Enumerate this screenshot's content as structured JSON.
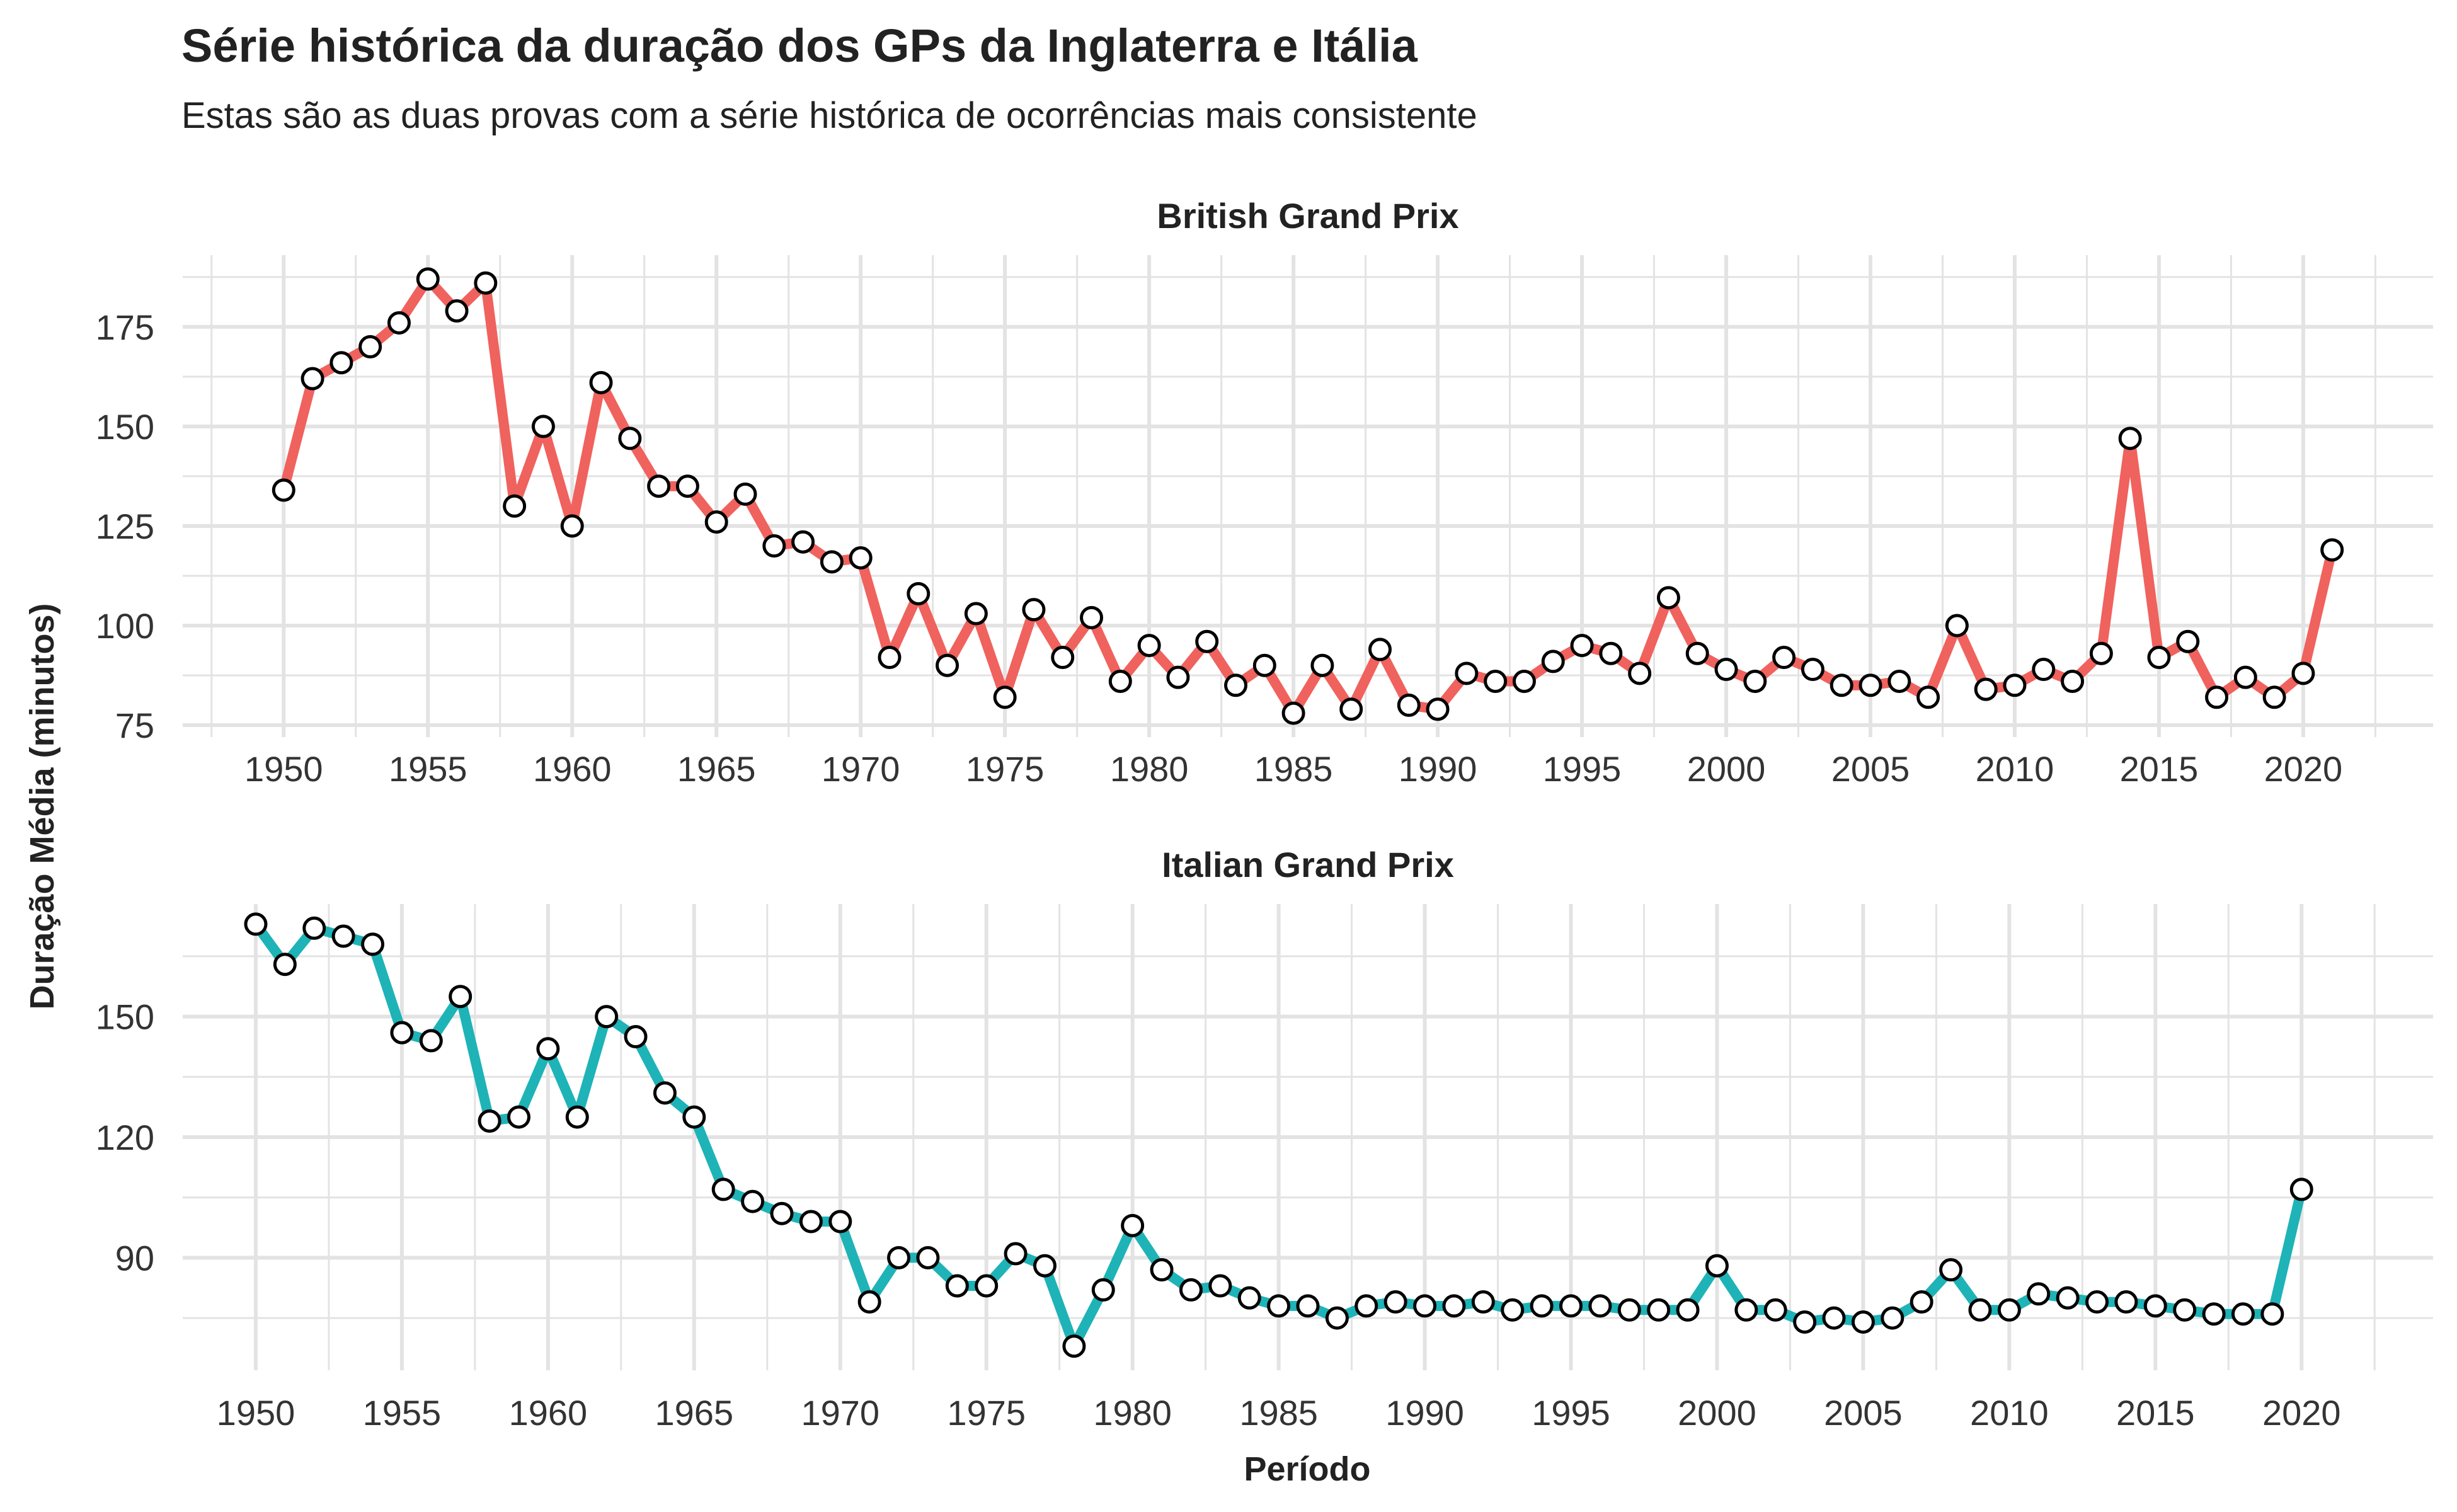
{
  "title": "Série histórica da duração dos GPs da Inglaterra e Itália",
  "subtitle": "Estas são as duas provas com a série histórica de ocorrências mais consistente",
  "ylabel": "Duração Média (minutos)",
  "xlabel": "Período",
  "colors": {
    "british": "#F0625D",
    "italian": "#1EB3B7",
    "grid": "#E3E3E3",
    "point_fill": "#FFFFFF",
    "point_stroke": "#000000"
  },
  "chart_data": [
    {
      "type": "line",
      "title": "British Grand Prix",
      "xlabel": "Período",
      "ylabel": "Duração Média (minutos)",
      "ylim": [
        72,
        193
      ],
      "xlim": [
        1946.5,
        2024.5
      ],
      "yticks": [
        75,
        100,
        125,
        150,
        175
      ],
      "xticks": [
        1950,
        1955,
        1960,
        1965,
        1970,
        1975,
        1980,
        1985,
        1990,
        1995,
        2000,
        2005,
        2010,
        2015,
        2020
      ],
      "grid": true,
      "series": [
        {
          "x": [
            1950,
            1951,
            1952,
            1953,
            1954,
            1955,
            1956,
            1957,
            1958,
            1959,
            1960,
            1961,
            1962,
            1963,
            1964,
            1965,
            1966,
            1967,
            1968,
            1969,
            1970,
            1971,
            1972,
            1973,
            1974,
            1975,
            1976,
            1977,
            1978,
            1979,
            1980,
            1981,
            1982,
            1983,
            1984,
            1985,
            1986,
            1987,
            1988,
            1989,
            1990,
            1991,
            1992,
            1993,
            1994,
            1995,
            1996,
            1997,
            1998,
            1999,
            2000,
            2001,
            2002,
            2003,
            2004,
            2005,
            2006,
            2007,
            2008,
            2009,
            2010,
            2011,
            2012,
            2013,
            2014,
            2015,
            2016,
            2017,
            2018,
            2019,
            2020,
            2021
          ],
          "y": [
            134,
            162,
            166,
            170,
            176,
            187,
            179,
            186,
            130,
            150,
            125,
            161,
            147,
            135,
            135,
            126,
            133,
            120,
            121,
            116,
            117,
            92,
            108,
            90,
            103,
            82,
            104,
            92,
            102,
            86,
            95,
            87,
            96,
            85,
            90,
            78,
            90,
            79,
            94,
            80,
            79,
            88,
            86,
            86,
            91,
            95,
            93,
            88,
            107,
            93,
            89,
            86,
            92,
            89,
            85,
            85,
            86,
            82,
            100,
            84,
            85,
            89,
            86,
            93,
            147,
            92,
            96,
            82,
            87,
            82,
            88,
            119
          ]
        }
      ]
    },
    {
      "type": "line",
      "title": "Italian Grand Prix",
      "xlabel": "Período",
      "ylabel": "Duração Média (minutos)",
      "ylim": [
        62,
        178
      ],
      "xlim": [
        1947.5,
        2024.5
      ],
      "yticks": [
        90,
        120,
        150
      ],
      "xticks": [
        1950,
        1955,
        1960,
        1965,
        1970,
        1975,
        1980,
        1985,
        1990,
        1995,
        2000,
        2005,
        2010,
        2015,
        2020
      ],
      "grid": true,
      "series": [
        {
          "x": [
            1950,
            1951,
            1952,
            1953,
            1954,
            1955,
            1956,
            1957,
            1958,
            1959,
            1960,
            1961,
            1962,
            1963,
            1964,
            1965,
            1966,
            1967,
            1968,
            1969,
            1970,
            1971,
            1972,
            1973,
            1974,
            1975,
            1976,
            1977,
            1978,
            1979,
            1980,
            1981,
            1982,
            1983,
            1984,
            1985,
            1986,
            1987,
            1988,
            1989,
            1990,
            1991,
            1992,
            1993,
            1994,
            1995,
            1996,
            1997,
            1998,
            1999,
            2000,
            2001,
            2002,
            2003,
            2004,
            2005,
            2006,
            2007,
            2008,
            2009,
            2010,
            2011,
            2012,
            2013,
            2014,
            2015,
            2016,
            2017,
            2018,
            2019,
            2020
          ],
          "y": [
            173,
            163,
            172,
            170,
            168,
            146,
            144,
            155,
            124,
            125,
            142,
            125,
            150,
            145,
            131,
            125,
            107,
            104,
            101,
            99,
            99,
            79,
            90,
            90,
            83,
            83,
            91,
            88,
            68,
            82,
            98,
            87,
            82,
            83,
            80,
            78,
            78,
            75,
            78,
            79,
            78,
            78,
            79,
            77,
            78,
            78,
            78,
            77,
            77,
            77,
            88,
            77,
            77,
            74,
            75,
            74,
            75,
            79,
            87,
            77,
            77,
            81,
            80,
            79,
            79,
            78,
            77,
            76,
            76,
            76,
            107
          ]
        }
      ]
    }
  ]
}
